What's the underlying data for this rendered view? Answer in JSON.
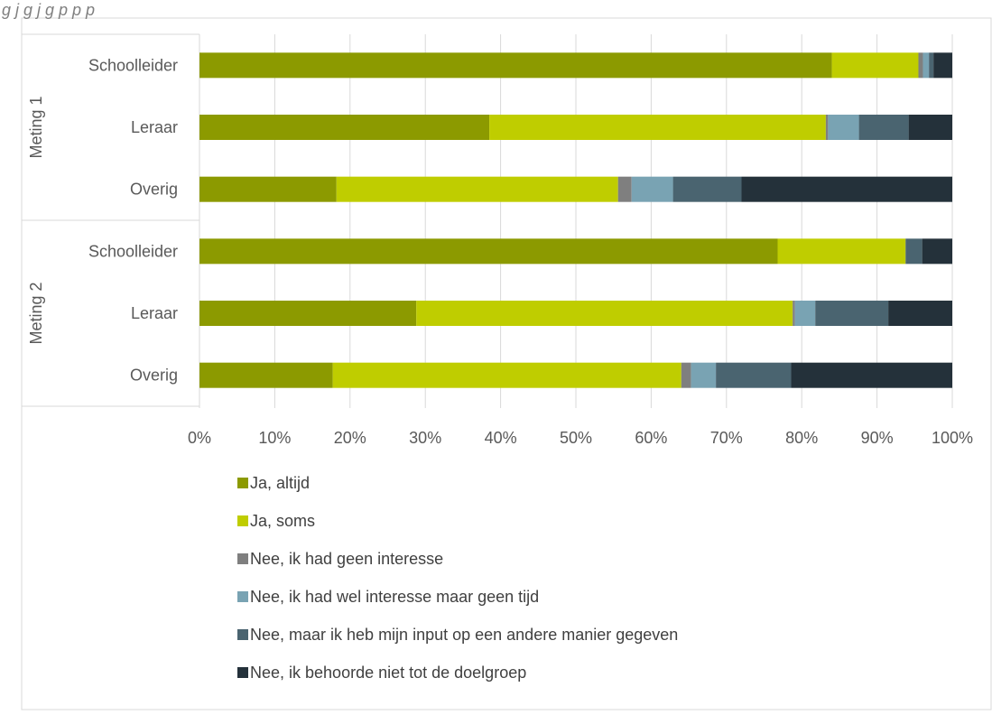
{
  "caption": "g                                     j        g j   g    p         p                                                    p",
  "chart_data": {
    "type": "bar",
    "orientation": "horizontal",
    "stacked": "percent",
    "groups": [
      {
        "label": "Meting 1",
        "categories": [
          "Schoolleider",
          "Leraar",
          "Overig"
        ]
      },
      {
        "label": "Meting 2",
        "categories": [
          "Schoolleider",
          "Leraar",
          "Overig"
        ]
      }
    ],
    "categories": [
      "Schoolleider",
      "Leraar",
      "Overig",
      "Schoolleider",
      "Leraar",
      "Overig"
    ],
    "series": [
      {
        "name": "Ja, altijd",
        "color": "#8c9a00",
        "values": [
          84,
          38.5,
          18.2,
          76.8,
          28.8,
          17.7
        ]
      },
      {
        "name": "Ja, soms",
        "color": "#bfcd00",
        "values": [
          11.5,
          44.7,
          37.4,
          17,
          50,
          46.3
        ]
      },
      {
        "name": "Nee, ik had geen interesse",
        "color": "#7f7f7f",
        "values": [
          0.6,
          0.3,
          1.8,
          0,
          0.3,
          1.3
        ]
      },
      {
        "name": "Nee, ik had wel interesse maar geen tijd",
        "color": "#79a3b3",
        "values": [
          0.8,
          4.1,
          5.5,
          0,
          2.7,
          3.3
        ]
      },
      {
        "name": "Nee, maar ik heb mijn input op een andere manier gegeven",
        "color": "#4a6470",
        "values": [
          0.6,
          6.6,
          9.1,
          2.2,
          9.7,
          10
        ]
      },
      {
        "name": "Nee, ik behoorde niet tot de doelgroep",
        "color": "#24313a",
        "values": [
          2.5,
          5.8,
          28,
          4,
          8.5,
          21.4
        ]
      }
    ],
    "xaxis": {
      "ticks": [
        "0%",
        "10%",
        "20%",
        "30%",
        "40%",
        "50%",
        "60%",
        "70%",
        "80%",
        "90%",
        "100%"
      ],
      "min": 0,
      "max": 100
    },
    "grid": true,
    "legend_position": "bottom"
  }
}
